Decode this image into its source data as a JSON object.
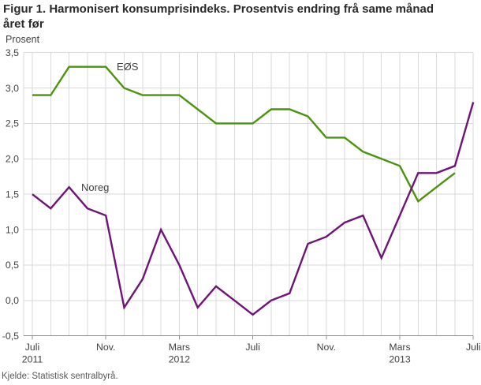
{
  "title": {
    "line1": "Figur 1. Harmonisert konsumprisindeks. Prosentvis endring frå same månad",
    "line2": "året før"
  },
  "footer": {
    "source": "Kjelde: Statistisk sentralbyrå."
  },
  "chart_data": {
    "type": "line",
    "title": "Harmonisert konsumprisindeks. Prosentvis endring frå same månad året før",
    "unit_label": "Prosent",
    "ylim": [
      -0.5,
      3.5
    ],
    "y_tick_step": 0.5,
    "grid": true,
    "legend_position": "inline-labels",
    "gridline_color": "#d9d9d9",
    "axis_color": "#8f8f8f",
    "categories": [
      "2011-07",
      "2011-08",
      "2011-09",
      "2011-10",
      "2011-11",
      "2011-12",
      "2012-01",
      "2012-02",
      "2012-03",
      "2012-04",
      "2012-05",
      "2012-06",
      "2012-07",
      "2012-08",
      "2012-09",
      "2012-10",
      "2012-11",
      "2012-12",
      "2013-01",
      "2013-02",
      "2013-03",
      "2013-04",
      "2013-05",
      "2013-06",
      "2013-07"
    ],
    "x_ticks": [
      {
        "month_index": 0,
        "label": "Juli",
        "year": "2011"
      },
      {
        "month_index": 4,
        "label": "Nov."
      },
      {
        "month_index": 8,
        "label": "Mars",
        "year": "2012"
      },
      {
        "month_index": 12,
        "label": "Juli"
      },
      {
        "month_index": 16,
        "label": "Nov."
      },
      {
        "month_index": 20,
        "label": "Mars",
        "year": "2013"
      },
      {
        "month_index": 24,
        "label": "Juli"
      }
    ],
    "y_ticks": [
      {
        "label": "3,5",
        "value": 3.5
      },
      {
        "label": "3,0",
        "value": 3.0
      },
      {
        "label": "2,5",
        "value": 2.5
      },
      {
        "label": "2,0",
        "value": 2.0
      },
      {
        "label": "1,5",
        "value": 1.5
      },
      {
        "label": "1,0",
        "value": 1.0
      },
      {
        "label": "0,5",
        "value": 0.5
      },
      {
        "label": "0,0",
        "value": 0.0
      },
      {
        "label": "-0,5",
        "value": -0.5
      }
    ],
    "series": [
      {
        "name": "EØS",
        "color": "#4a940a",
        "values": [
          2.9,
          2.9,
          3.3,
          3.3,
          3.3,
          3.0,
          2.9,
          2.9,
          2.9,
          2.7,
          2.5,
          2.5,
          2.5,
          2.7,
          2.7,
          2.6,
          2.3,
          2.3,
          2.1,
          2.0,
          1.9,
          1.4,
          1.6,
          1.8,
          null
        ]
      },
      {
        "name": "Noreg",
        "color": "#6e1377",
        "values": [
          1.5,
          1.3,
          1.6,
          1.3,
          1.2,
          -0.1,
          0.3,
          1.0,
          0.5,
          -0.1,
          0.2,
          0.0,
          -0.2,
          0.0,
          0.1,
          0.8,
          0.9,
          1.1,
          1.2,
          0.6,
          1.2,
          1.8,
          1.8,
          1.9,
          2.8
        ]
      }
    ]
  }
}
